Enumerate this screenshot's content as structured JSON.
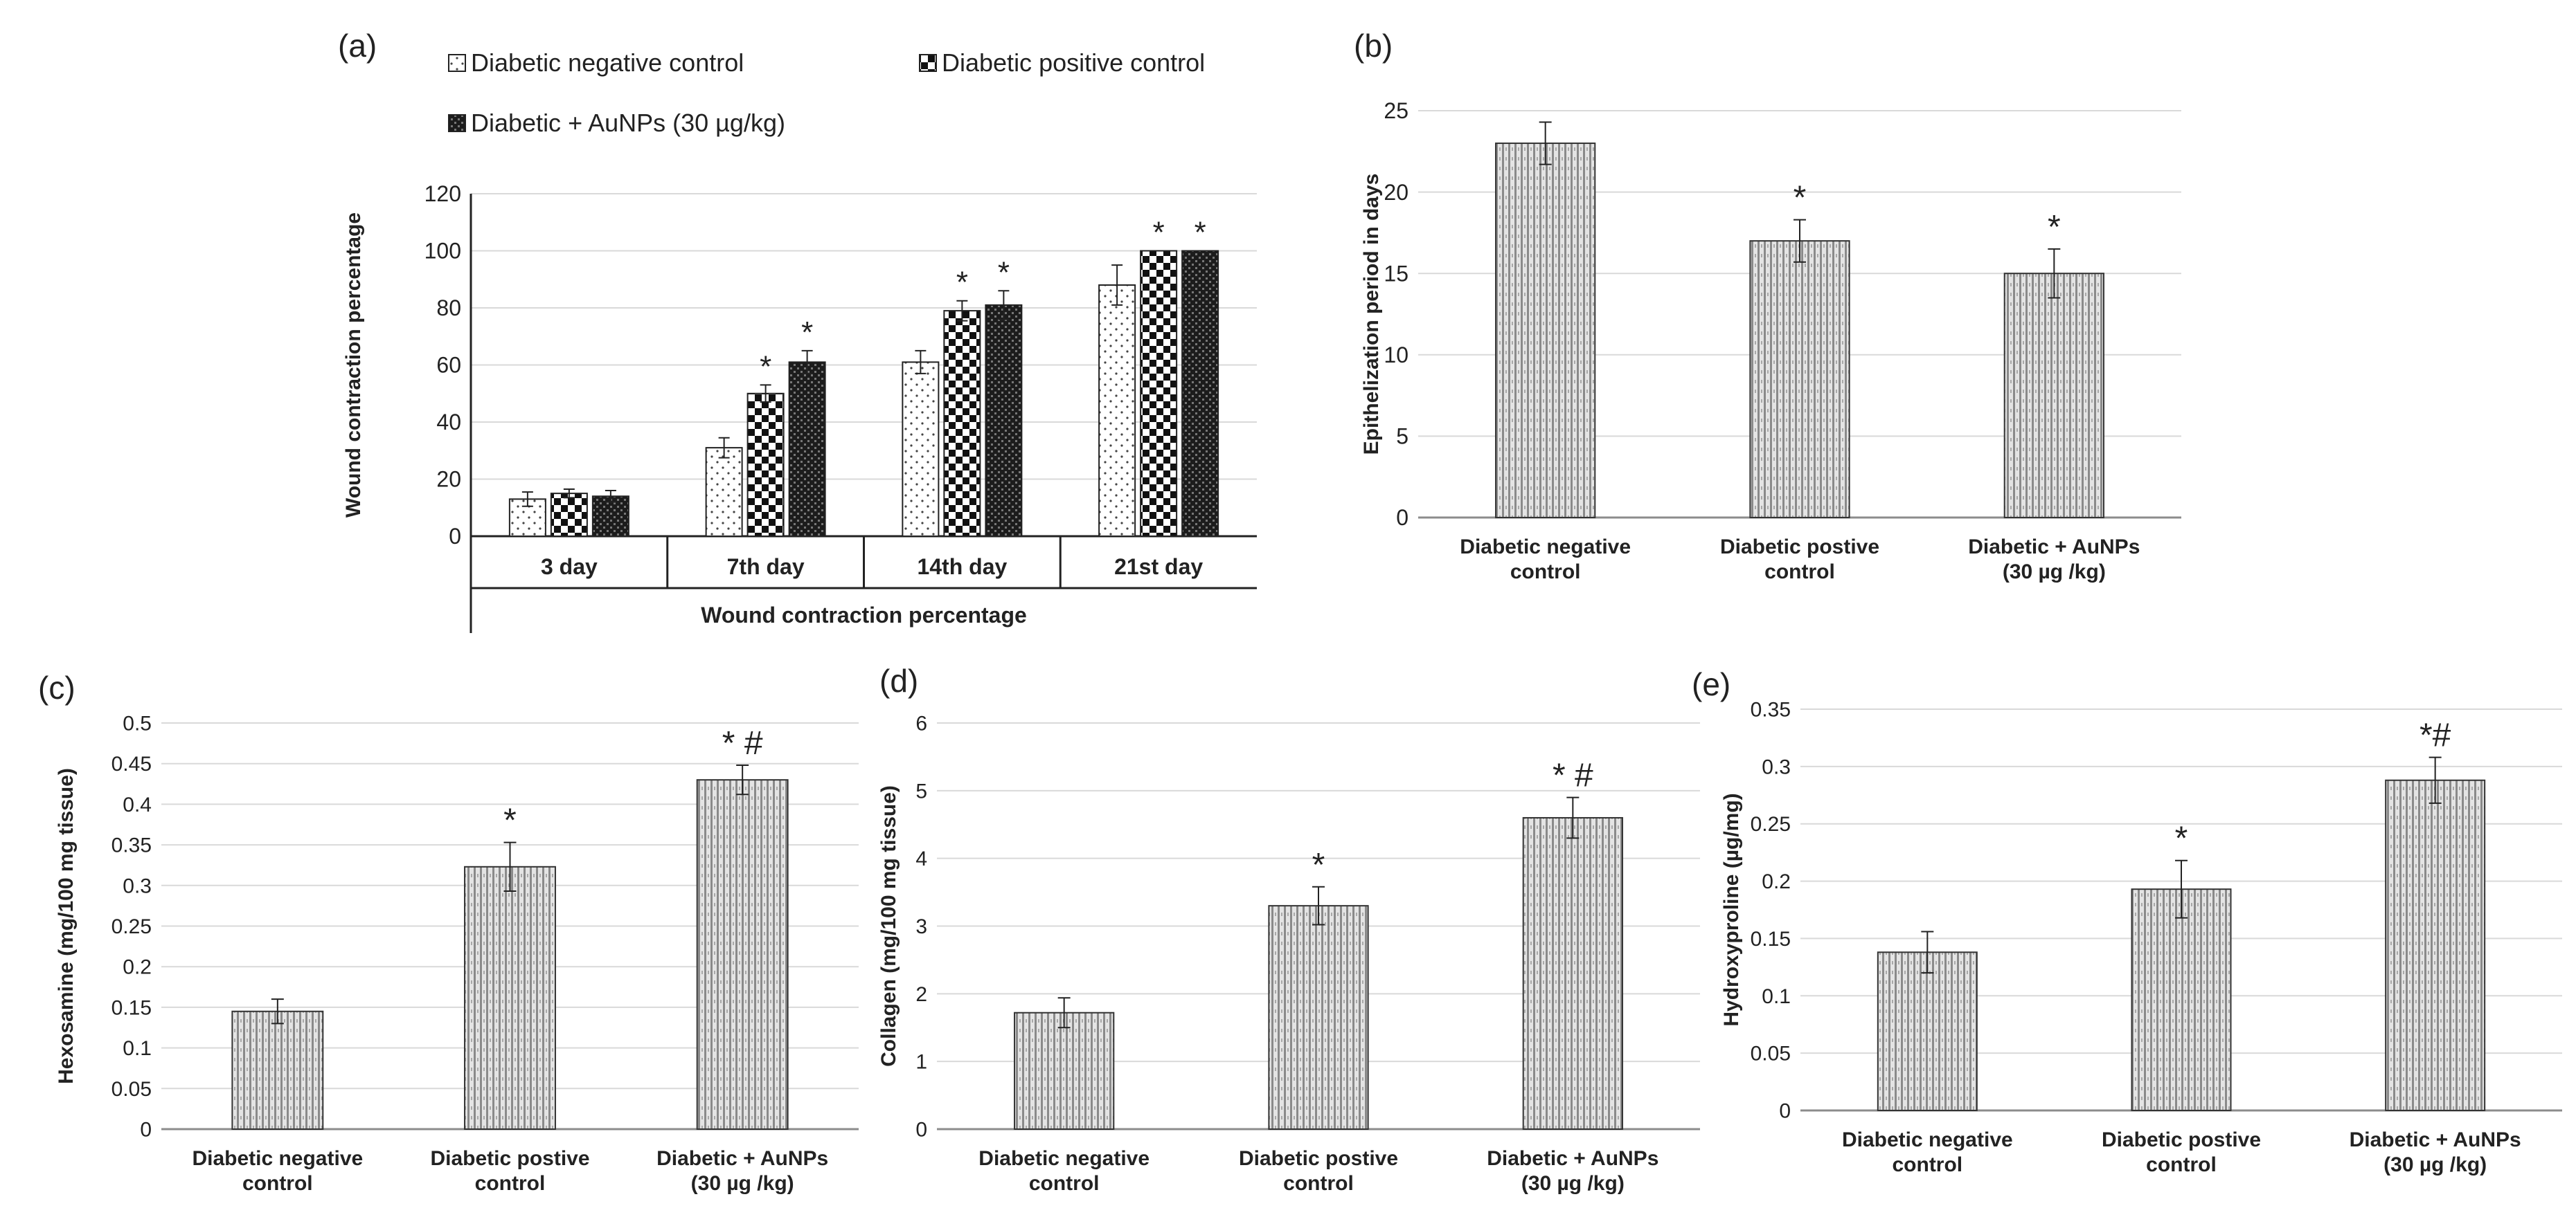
{
  "panels": {
    "a": "(a)",
    "b": "(b)",
    "c": "(c)",
    "d": "(d)",
    "e": "(e)"
  },
  "colors": {
    "ink": "#222222",
    "grid": "#d9d9d9",
    "bar_fill": "#bdbdbd",
    "axis": "#8c8c8c"
  },
  "chart_data": [
    {
      "panel": "a",
      "type": "bar",
      "categories": [
        "3 day",
        "7th day",
        "14th day",
        "21st day"
      ],
      "series": [
        {
          "name": "Diabetic negative control",
          "pattern": "dots",
          "values": [
            13,
            31,
            61,
            88
          ],
          "errors": [
            2.5,
            3.5,
            4,
            7
          ],
          "marks": [
            "",
            "",
            "",
            ""
          ]
        },
        {
          "name": "Diabetic positive control",
          "pattern": "checker",
          "values": [
            15,
            50,
            79,
            100
          ],
          "errors": [
            1.5,
            3,
            3.5,
            0
          ],
          "marks": [
            "",
            "*",
            "*",
            "*"
          ]
        },
        {
          "name": "Diabetic + AuNPs (30 µg/kg)",
          "pattern": "dark",
          "values": [
            14,
            61,
            81,
            100
          ],
          "errors": [
            2,
            4,
            5,
            0
          ],
          "marks": [
            "",
            "*",
            "*",
            "*"
          ]
        }
      ],
      "ylabel": "Wound contraction percentage",
      "xlabel": "Wound contraction percentage",
      "ylim": [
        0,
        120
      ],
      "yticks": [
        0,
        20,
        40,
        60,
        80,
        100,
        120
      ],
      "grid": true,
      "legend": "top"
    },
    {
      "panel": "b",
      "type": "bar",
      "categories": [
        [
          "Diabetic negative",
          "control"
        ],
        [
          "Diabetic postive",
          "control"
        ],
        [
          "Diabetic + AuNPs",
          "(30 µg /kg)"
        ]
      ],
      "values": [
        23,
        17,
        15
      ],
      "errors": [
        1.3,
        1.3,
        1.5
      ],
      "marks": [
        "",
        "*",
        "*"
      ],
      "ylabel": "Epithelization period in days",
      "ylim": [
        0,
        25
      ],
      "yticks": [
        0,
        5,
        10,
        15,
        20,
        25
      ],
      "grid": true
    },
    {
      "panel": "c",
      "type": "bar",
      "categories": [
        [
          "Diabetic negative",
          "control"
        ],
        [
          "Diabetic postive",
          "control"
        ],
        [
          "Diabetic + AuNPs",
          "(30 µg /kg)"
        ]
      ],
      "values": [
        0.145,
        0.323,
        0.43
      ],
      "errors": [
        0.015,
        0.03,
        0.018
      ],
      "marks": [
        "",
        "*",
        "* #"
      ],
      "ylabel": "Hexosamine (mg/100 mg tissue)",
      "ylim": [
        0,
        0.5
      ],
      "yticks": [
        "0",
        "0.05",
        "0.1",
        "0.15",
        "0.2",
        "0.25",
        "0.3",
        "0.35",
        "0.4",
        "0.45",
        "0.5"
      ],
      "grid": true
    },
    {
      "panel": "d",
      "type": "bar",
      "categories": [
        [
          "Diabetic negative",
          "control"
        ],
        [
          "Diabetic postive",
          "control"
        ],
        [
          "Diabetic + AuNPs",
          "(30 µg /kg)"
        ]
      ],
      "values": [
        1.72,
        3.3,
        4.6
      ],
      "errors": [
        0.22,
        0.28,
        0.3
      ],
      "marks": [
        "",
        "*",
        "* #"
      ],
      "ylabel": "Collagen (mg/100 mg tissue)",
      "ylim": [
        0,
        6
      ],
      "yticks": [
        "0",
        "1",
        "2",
        "3",
        "4",
        "5",
        "6"
      ],
      "grid": true
    },
    {
      "panel": "e",
      "type": "bar",
      "categories": [
        [
          "Diabetic negative",
          "control"
        ],
        [
          "Diabetic postive",
          "control"
        ],
        [
          "Diabetic + AuNPs",
          "(30 µg /kg)"
        ]
      ],
      "values": [
        0.138,
        0.193,
        0.288
      ],
      "errors": [
        0.018,
        0.025,
        0.02
      ],
      "marks": [
        "",
        "*",
        "*#"
      ],
      "ylabel": "Hydroxyproline (µg/mg)",
      "ylim": [
        0,
        0.35
      ],
      "yticks": [
        "0",
        "0.05",
        "0.1",
        "0.15",
        "0.2",
        "0.25",
        "0.3",
        "0.35"
      ],
      "grid": true
    }
  ]
}
